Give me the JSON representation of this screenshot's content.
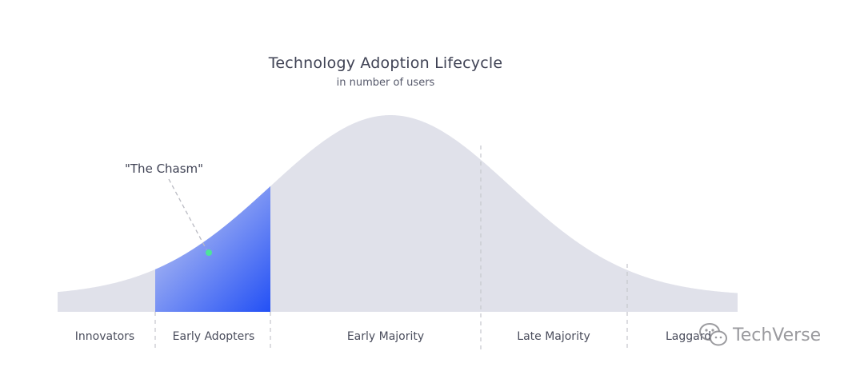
{
  "diagram": {
    "title": "Technology Adoption Lifecycle",
    "subtitle": "in number of users",
    "callout": "\"The Chasm\"",
    "segments": [
      {
        "label": "Innovators"
      },
      {
        "label": "Early Adopters"
      },
      {
        "label": "Early Majority"
      },
      {
        "label": "Late Majority"
      },
      {
        "label": "Laggards"
      }
    ],
    "colors": {
      "curve": "#e0e1ea",
      "highlight_start": "#c5cdf2",
      "highlight_end": "#2350f5",
      "divider": "#c8c9cf",
      "chasm_dot": "#4de39a"
    }
  },
  "watermark": {
    "icon": "wechat-icon",
    "text": "TechVerse"
  }
}
